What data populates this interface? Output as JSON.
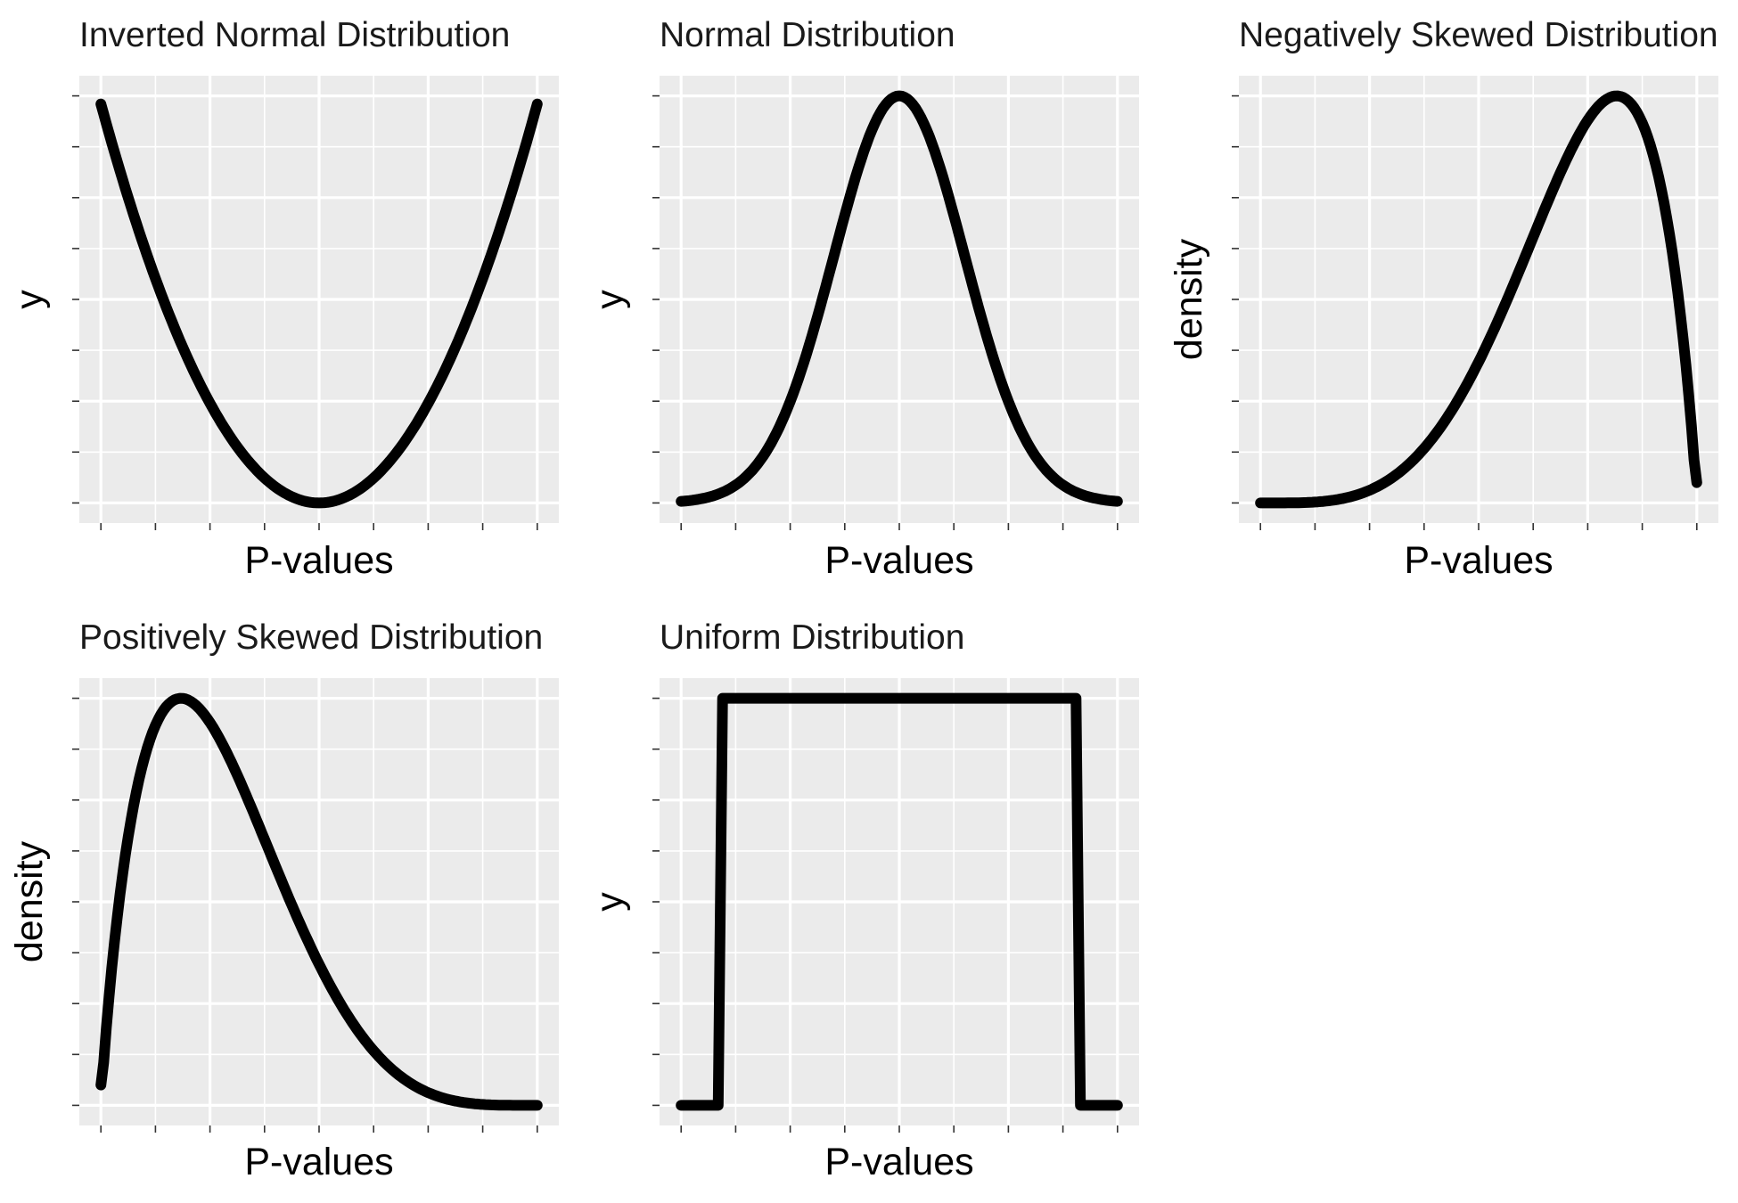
{
  "chart_data": [
    {
      "type": "line",
      "title": "Inverted Normal Distribution",
      "xlabel": "P-values",
      "ylabel": "y",
      "grid": true,
      "series": [
        {
          "kind": "inverted-normal",
          "x_range": [
            0,
            1
          ]
        }
      ]
    },
    {
      "type": "line",
      "title": "Normal Distribution",
      "xlabel": "P-values",
      "ylabel": "y",
      "grid": true,
      "series": [
        {
          "kind": "normal",
          "x_range": [
            0,
            1
          ]
        }
      ]
    },
    {
      "type": "line",
      "title": "Negatively Skewed Distribution",
      "xlabel": "P-values",
      "ylabel": "density",
      "grid": true,
      "series": [
        {
          "kind": "negative-skew",
          "x_range": [
            0,
            1
          ]
        }
      ]
    },
    {
      "type": "line",
      "title": "Positively Skewed Distribution",
      "xlabel": "P-values",
      "ylabel": "density",
      "grid": true,
      "series": [
        {
          "kind": "positive-skew",
          "x_range": [
            0,
            1
          ]
        }
      ]
    },
    {
      "type": "line",
      "title": "Uniform Distribution",
      "xlabel": "P-values",
      "ylabel": "y",
      "grid": true,
      "series": [
        {
          "kind": "uniform",
          "x_range": [
            0,
            1
          ]
        }
      ]
    }
  ],
  "colors": {
    "panel_background": "#ebebeb",
    "grid": "#ffffff",
    "line": "#000000"
  }
}
